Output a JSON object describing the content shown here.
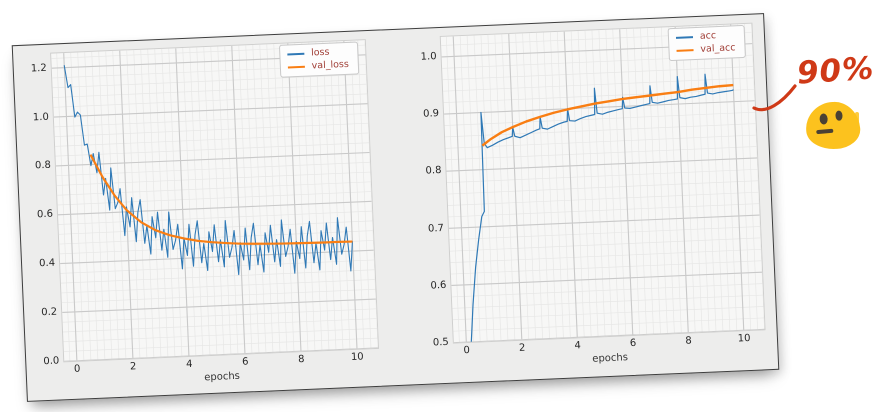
{
  "figure": {
    "background": "#ededec",
    "border_color": "#3d3d3d"
  },
  "annotation": {
    "label": "90%",
    "color": "#cf3917"
  },
  "emoji": {
    "name": "neutral-face-blob",
    "body_color": "#fcc21e",
    "feature_color": "#4a4134"
  },
  "chart_data": [
    {
      "type": "line",
      "title": "",
      "xlabel": "epochs",
      "ylabel": "",
      "xlim": [
        -0.45,
        10.75
      ],
      "ylim": [
        0.0,
        1.26
      ],
      "xticks": [
        0,
        2,
        4,
        6,
        8,
        10
      ],
      "xtick_labels": [
        "0",
        "2",
        "4",
        "6",
        "8",
        "10"
      ],
      "yticks": [
        1.2,
        1.0,
        0.8,
        0.6,
        0.4,
        0.2,
        0.0
      ],
      "ytick_labels": [
        "1.2",
        "1.0",
        "0.8",
        "0.6",
        "0.4",
        "0.2",
        "0.0"
      ],
      "minor_x": 0.25,
      "minor_y": 0.04,
      "grid": true,
      "legend_position": "upper-right",
      "colors": {
        "axes_bg": "#f7f7f6",
        "grid_major": "#c9c9c9",
        "grid_minor": "#e7e7e6",
        "tick_text": "#262626",
        "legend_text": "#a03d35",
        "legend_border": "#c9c9c9",
        "legend_bg": "#fdfdfd"
      },
      "series": [
        {
          "name": "loss",
          "color": "#2f79b6",
          "width": 1.1,
          "x_start": 0,
          "x_step": 0.1,
          "values": [
            1.21,
            1.118,
            1.13,
            0.996,
            1.016,
            1.004,
            0.88,
            0.884,
            0.795,
            0.844,
            0.765,
            0.848,
            0.673,
            0.74,
            0.61,
            0.782,
            0.615,
            0.64,
            0.696,
            0.503,
            0.62,
            0.538,
            0.657,
            0.476,
            0.596,
            0.647,
            0.468,
            0.54,
            0.423,
            0.576,
            0.489,
            0.593,
            0.437,
            0.522,
            0.407,
            0.592,
            0.438,
            0.474,
            0.54,
            0.357,
            0.484,
            0.411,
            0.538,
            0.366,
            0.493,
            0.551,
            0.379,
            0.457,
            0.346,
            0.504,
            0.423,
            0.532,
            0.38,
            0.469,
            0.358,
            0.547,
            0.396,
            0.436,
            0.505,
            0.324,
            0.454,
            0.383,
            0.513,
            0.342,
            0.472,
            0.531,
            0.361,
            0.441,
            0.33,
            0.49,
            0.41,
            0.52,
            0.37,
            0.46,
            0.35,
            0.54,
            0.39,
            0.43,
            0.5,
            0.32,
            0.449,
            0.379,
            0.509,
            0.339,
            0.469,
            0.529,
            0.359,
            0.439,
            0.329,
            0.489,
            0.409,
            0.519,
            0.369,
            0.459,
            0.349,
            0.539,
            0.389,
            0.429,
            0.499,
            0.319,
            0.44
          ]
        },
        {
          "name": "val_loss",
          "color": "#f97e13",
          "width": 2.2,
          "points": [
            [
              0.8,
              0.84
            ],
            [
              1.2,
              0.745
            ],
            [
              1.6,
              0.668
            ],
            [
              2.0,
              0.607
            ],
            [
              2.5,
              0.555
            ],
            [
              3.0,
              0.52
            ],
            [
              3.5,
              0.497
            ],
            [
              4.0,
              0.481
            ],
            [
              4.5,
              0.469
            ],
            [
              5.0,
              0.461
            ],
            [
              5.5,
              0.455
            ],
            [
              6.0,
              0.45
            ],
            [
              6.5,
              0.447
            ],
            [
              7.0,
              0.445
            ],
            [
              7.5,
              0.443
            ],
            [
              8.0,
              0.442
            ],
            [
              8.5,
              0.441
            ],
            [
              9.0,
              0.44
            ],
            [
              9.5,
              0.44
            ],
            [
              10.0,
              0.439
            ]
          ]
        }
      ]
    },
    {
      "type": "line",
      "title": "",
      "xlabel": "epochs",
      "ylabel": "",
      "xlim": [
        -0.45,
        10.75
      ],
      "ylim": [
        0.5,
        1.035
      ],
      "xticks": [
        0,
        2,
        4,
        6,
        8,
        10
      ],
      "xtick_labels": [
        "0",
        "2",
        "4",
        "6",
        "8",
        "10"
      ],
      "yticks": [
        1.0,
        0.9,
        0.8,
        0.7,
        0.6,
        0.5
      ],
      "ytick_labels": [
        "1.0",
        "0.9",
        "0.8",
        "0.7",
        "0.6",
        "0.5"
      ],
      "minor_x": 0.25,
      "minor_y": 0.02,
      "grid": true,
      "legend_position": "upper-right",
      "colors": {
        "axes_bg": "#f7f7f6",
        "grid_major": "#c9c9c9",
        "grid_minor": "#e7e7e6",
        "tick_text": "#262626",
        "legend_text": "#a03d35",
        "legend_border": "#c9c9c9",
        "legend_bg": "#fdfdfd"
      },
      "series": [
        {
          "name": "acc",
          "color": "#2f79b6",
          "width": 1.2,
          "points": [
            [
              0.18,
              0.5
            ],
            [
              0.3,
              0.565
            ],
            [
              0.45,
              0.63
            ],
            [
              0.6,
              0.678
            ],
            [
              0.75,
              0.718
            ],
            [
              0.85,
              0.727
            ],
            [
              0.88,
              0.9
            ],
            [
              0.95,
              0.846
            ],
            [
              1.05,
              0.838
            ],
            [
              1.25,
              0.842
            ],
            [
              1.45,
              0.847
            ],
            [
              1.65,
              0.851
            ],
            [
              1.85,
              0.854
            ],
            [
              1.97,
              0.856
            ],
            [
              2.0,
              0.872
            ],
            [
              2.06,
              0.856
            ],
            [
              2.25,
              0.853
            ],
            [
              2.45,
              0.857
            ],
            [
              2.65,
              0.861
            ],
            [
              2.85,
              0.865
            ],
            [
              2.97,
              0.867
            ],
            [
              3.0,
              0.888
            ],
            [
              3.06,
              0.868
            ],
            [
              3.25,
              0.866
            ],
            [
              3.45,
              0.87
            ],
            [
              3.65,
              0.874
            ],
            [
              3.85,
              0.877
            ],
            [
              3.97,
              0.878
            ],
            [
              4.0,
              0.9
            ],
            [
              4.06,
              0.879
            ],
            [
              4.25,
              0.878
            ],
            [
              4.45,
              0.882
            ],
            [
              4.65,
              0.885
            ],
            [
              4.85,
              0.887
            ],
            [
              4.97,
              0.888
            ],
            [
              5.0,
              0.934
            ],
            [
              5.06,
              0.89
            ],
            [
              5.25,
              0.888
            ],
            [
              5.45,
              0.891
            ],
            [
              5.65,
              0.893
            ],
            [
              5.85,
              0.895
            ],
            [
              5.97,
              0.896
            ],
            [
              6.0,
              0.916
            ],
            [
              6.06,
              0.897
            ],
            [
              6.25,
              0.896
            ],
            [
              6.45,
              0.898
            ],
            [
              6.65,
              0.9
            ],
            [
              6.85,
              0.902
            ],
            [
              6.97,
              0.903
            ],
            [
              7.0,
              0.934
            ],
            [
              7.06,
              0.905
            ],
            [
              7.25,
              0.903
            ],
            [
              7.45,
              0.905
            ],
            [
              7.65,
              0.907
            ],
            [
              7.85,
              0.908
            ],
            [
              7.97,
              0.909
            ],
            [
              8.0,
              0.948
            ],
            [
              8.06,
              0.911
            ],
            [
              8.25,
              0.909
            ],
            [
              8.45,
              0.911
            ],
            [
              8.65,
              0.912
            ],
            [
              8.85,
              0.914
            ],
            [
              8.97,
              0.915
            ],
            [
              9.0,
              0.95
            ],
            [
              9.06,
              0.917
            ],
            [
              9.25,
              0.915
            ],
            [
              9.45,
              0.917
            ],
            [
              9.65,
              0.918
            ],
            [
              9.85,
              0.919
            ],
            [
              9.97,
              0.92
            ],
            [
              10.0,
              0.921
            ]
          ]
        },
        {
          "name": "val_acc",
          "color": "#f97e13",
          "width": 2.4,
          "points": [
            [
              0.88,
              0.842
            ],
            [
              1.2,
              0.853
            ],
            [
              1.6,
              0.864
            ],
            [
              2.0,
              0.872
            ],
            [
              2.5,
              0.881
            ],
            [
              3.0,
              0.888
            ],
            [
              3.5,
              0.894
            ],
            [
              4.0,
              0.899
            ],
            [
              4.5,
              0.903
            ],
            [
              5.0,
              0.907
            ],
            [
              5.5,
              0.91
            ],
            [
              6.0,
              0.913
            ],
            [
              6.5,
              0.915
            ],
            [
              7.0,
              0.917
            ],
            [
              7.5,
              0.919
            ],
            [
              8.0,
              0.921
            ],
            [
              8.5,
              0.924
            ],
            [
              9.0,
              0.926
            ],
            [
              9.5,
              0.928
            ],
            [
              10.0,
              0.929
            ]
          ]
        }
      ]
    }
  ]
}
